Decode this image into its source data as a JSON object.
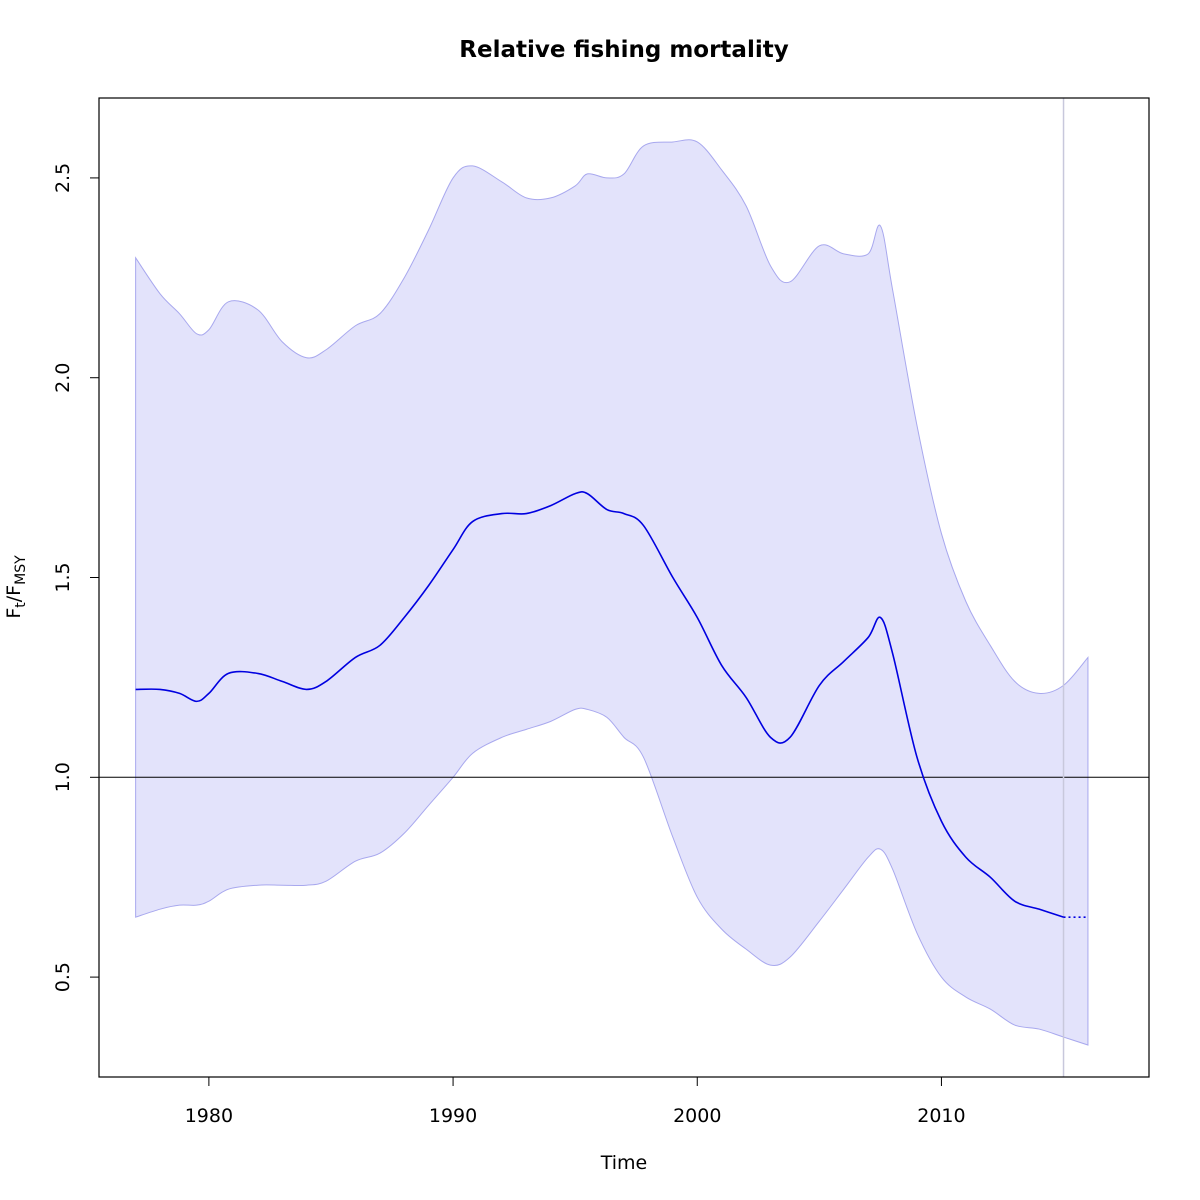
{
  "chart_data": {
    "type": "line",
    "title": "Relative fishing mortality",
    "xlabel": "Time",
    "ylabel": {
      "main": "F",
      "sub1": "t",
      "slash": "/",
      "main2": "F",
      "sub2": "MSY"
    },
    "xlim": [
      1975.5,
      2018.5
    ],
    "ylim": [
      0.25,
      2.7
    ],
    "x_ticks": [
      1980,
      1990,
      2000,
      2010
    ],
    "y_ticks": [
      0.5,
      1.0,
      1.5,
      2.0,
      2.5
    ],
    "y_tick_labels": [
      "0.5",
      "1.0",
      "1.5",
      "2.0",
      "2.5"
    ],
    "reference_line_y": 1.0,
    "vertical_line_x": 2015,
    "colors": {
      "line": "#0000e0",
      "band_fill": "#e3e3fb",
      "band_edge": "#a8a8ee",
      "vline": "#c8c8dc",
      "ref": "#000000"
    },
    "series": [
      {
        "kind": "estimate",
        "x": [
          1977,
          1978,
          1978.8,
          1979.5,
          1980,
          1980.8,
          1982,
          1983,
          1984,
          1984.8,
          1986,
          1987,
          1988,
          1989,
          1990,
          1990.8,
          1992,
          1993,
          1994,
          1995,
          1995.5,
          1996.3,
          1997,
          1997.8,
          1999,
          2000,
          2001,
          2002,
          2003,
          2003.8,
          2005,
          2006,
          2007,
          2007.5,
          2008,
          2009,
          2010,
          2011,
          2012,
          2013,
          2014,
          2015
        ],
        "values": [
          1.22,
          1.22,
          1.21,
          1.19,
          1.21,
          1.26,
          1.26,
          1.24,
          1.22,
          1.24,
          1.3,
          1.33,
          1.4,
          1.48,
          1.57,
          1.64,
          1.66,
          1.66,
          1.68,
          1.71,
          1.71,
          1.67,
          1.66,
          1.63,
          1.5,
          1.4,
          1.28,
          1.2,
          1.1,
          1.1,
          1.23,
          1.29,
          1.35,
          1.4,
          1.31,
          1.05,
          0.89,
          0.8,
          0.75,
          0.69,
          0.67,
          0.65
        ]
      },
      {
        "kind": "forecast",
        "x": [
          2015,
          2016
        ],
        "values": [
          0.65,
          0.65
        ]
      }
    ],
    "band": {
      "x": [
        1977,
        1978,
        1978.8,
        1979.5,
        1980,
        1980.8,
        1982,
        1983,
        1984,
        1984.8,
        1986,
        1987,
        1988,
        1989,
        1990,
        1990.8,
        1992,
        1993,
        1994,
        1995,
        1995.5,
        1996.3,
        1997,
        1997.8,
        1999,
        2000,
        2001,
        2002,
        2003,
        2003.8,
        2005,
        2006,
        2007,
        2007.5,
        2008,
        2009,
        2010,
        2011,
        2012,
        2013,
        2014,
        2015,
        2016
      ],
      "upper": [
        2.3,
        2.21,
        2.16,
        2.11,
        2.12,
        2.19,
        2.17,
        2.09,
        2.05,
        2.07,
        2.13,
        2.16,
        2.25,
        2.37,
        2.5,
        2.53,
        2.49,
        2.45,
        2.45,
        2.48,
        2.51,
        2.5,
        2.51,
        2.58,
        2.59,
        2.59,
        2.52,
        2.43,
        2.28,
        2.24,
        2.33,
        2.31,
        2.31,
        2.38,
        2.22,
        1.88,
        1.61,
        1.44,
        1.33,
        1.24,
        1.21,
        1.23,
        1.3
      ],
      "lower": [
        0.65,
        0.67,
        0.68,
        0.68,
        0.69,
        0.72,
        0.73,
        0.73,
        0.73,
        0.74,
        0.79,
        0.81,
        0.86,
        0.93,
        1.0,
        1.06,
        1.1,
        1.12,
        1.14,
        1.17,
        1.17,
        1.15,
        1.1,
        1.05,
        0.85,
        0.7,
        0.62,
        0.57,
        0.53,
        0.55,
        0.64,
        0.72,
        0.8,
        0.82,
        0.77,
        0.61,
        0.5,
        0.45,
        0.42,
        0.38,
        0.37,
        0.35,
        0.33
      ]
    }
  }
}
